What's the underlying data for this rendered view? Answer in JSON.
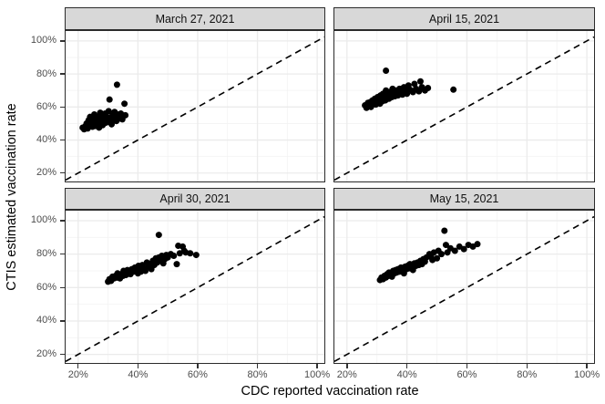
{
  "chart_data": {
    "type": "scatter",
    "title": "",
    "xlabel": "CDC reported vaccination rate",
    "ylabel": "CTIS estimated vaccination rate",
    "x_domain": [
      15.8,
      102.4
    ],
    "y_domain": [
      14.9,
      106.0
    ],
    "axis_ticks": {
      "values": [
        20,
        40,
        60,
        80,
        100
      ],
      "labels": [
        "20%",
        "40%",
        "60%",
        "80%",
        "100%"
      ],
      "minor_values": [
        30,
        50,
        70,
        90
      ]
    },
    "grid": "on",
    "legend": "none",
    "reference_line": {
      "type": "identity",
      "style": "dashed",
      "from": 15.8,
      "to": 102.4
    },
    "point_radius_px": 3.5,
    "facets": [
      {
        "title": "March 27, 2021",
        "points": [
          [
            21.5,
            47.5
          ],
          [
            22,
            46.5
          ],
          [
            22.3,
            48.2
          ],
          [
            22.8,
            50
          ],
          [
            23.2,
            47
          ],
          [
            23.5,
            52
          ],
          [
            23.8,
            49
          ],
          [
            24,
            54
          ],
          [
            24.3,
            51
          ],
          [
            24.8,
            48
          ],
          [
            25,
            53
          ],
          [
            25.2,
            50.2
          ],
          [
            25.4,
            55.5
          ],
          [
            25.8,
            48.5
          ],
          [
            26,
            52
          ],
          [
            26.4,
            54
          ],
          [
            26.8,
            50
          ],
          [
            27,
            47.5
          ],
          [
            27.2,
            53
          ],
          [
            27.4,
            56.5
          ],
          [
            27.8,
            51
          ],
          [
            28,
            55
          ],
          [
            28.2,
            49
          ],
          [
            28.5,
            53.5
          ],
          [
            28.8,
            52
          ],
          [
            29,
            56
          ],
          [
            29.3,
            50.5
          ],
          [
            29.6,
            54
          ],
          [
            30,
            52.5
          ],
          [
            30.2,
            57.5
          ],
          [
            30.4,
            51
          ],
          [
            30.5,
            64.5
          ],
          [
            31,
            53
          ],
          [
            31.2,
            49.5
          ],
          [
            31.5,
            55
          ],
          [
            31.9,
            52
          ],
          [
            32.2,
            57
          ],
          [
            32.5,
            54
          ],
          [
            32.8,
            51.5
          ],
          [
            33,
            73.5
          ],
          [
            33.4,
            55.5
          ],
          [
            33.8,
            53
          ],
          [
            34.3,
            56
          ],
          [
            34.8,
            52.5
          ],
          [
            35.5,
            62
          ],
          [
            35.8,
            55
          ]
        ]
      },
      {
        "title": "April 15, 2021",
        "points": [
          [
            26,
            61
          ],
          [
            26.5,
            59.5
          ],
          [
            27,
            62.5
          ],
          [
            27.5,
            61
          ],
          [
            27.8,
            63
          ],
          [
            28,
            60
          ],
          [
            28.5,
            64
          ],
          [
            29,
            62
          ],
          [
            29.3,
            65
          ],
          [
            29.6,
            61.5
          ],
          [
            30,
            63.5
          ],
          [
            30.2,
            66
          ],
          [
            30.5,
            64
          ],
          [
            31,
            62
          ],
          [
            31.2,
            67
          ],
          [
            31.5,
            65
          ],
          [
            31.8,
            63.5
          ],
          [
            32,
            68
          ],
          [
            32.4,
            66
          ],
          [
            32.8,
            64
          ],
          [
            33,
            70
          ],
          [
            33,
            82
          ],
          [
            33.5,
            67
          ],
          [
            34,
            65
          ],
          [
            34.2,
            69
          ],
          [
            34.6,
            67.5
          ],
          [
            35,
            66
          ],
          [
            35.2,
            71
          ],
          [
            35.6,
            68
          ],
          [
            36,
            66.5
          ],
          [
            36.2,
            70
          ],
          [
            36.6,
            68.5
          ],
          [
            37,
            67
          ],
          [
            37.5,
            71
          ],
          [
            38,
            69
          ],
          [
            38.5,
            67.5
          ],
          [
            39,
            72
          ],
          [
            39.5,
            70
          ],
          [
            40,
            68
          ],
          [
            40.5,
            73
          ],
          [
            41,
            70.5
          ],
          [
            42,
            69
          ],
          [
            42.5,
            74
          ],
          [
            43,
            71
          ],
          [
            44,
            69.5
          ],
          [
            44.5,
            75.5
          ],
          [
            45,
            72
          ],
          [
            46,
            70
          ],
          [
            47,
            71.5
          ],
          [
            55.5,
            70.5
          ]
        ]
      },
      {
        "title": "April 30, 2021",
        "points": [
          [
            30,
            63.5
          ],
          [
            30.5,
            65
          ],
          [
            31,
            64
          ],
          [
            31.5,
            66.5
          ],
          [
            32,
            65.5
          ],
          [
            32.5,
            67
          ],
          [
            33,
            66
          ],
          [
            33.2,
            68.5
          ],
          [
            33.6,
            67
          ],
          [
            34,
            65.5
          ],
          [
            34.5,
            68
          ],
          [
            35,
            67
          ],
          [
            35.2,
            70
          ],
          [
            35.6,
            68.5
          ],
          [
            36,
            67.5
          ],
          [
            36.5,
            70.5
          ],
          [
            37,
            69
          ],
          [
            37.5,
            68
          ],
          [
            38,
            71
          ],
          [
            38.5,
            69.5
          ],
          [
            39,
            72
          ],
          [
            39.5,
            70
          ],
          [
            40,
            68.5
          ],
          [
            40.2,
            73
          ],
          [
            40.6,
            71
          ],
          [
            41,
            69.5
          ],
          [
            41.5,
            73.5
          ],
          [
            42,
            71.5
          ],
          [
            42.5,
            70
          ],
          [
            43,
            75
          ],
          [
            43.5,
            72.5
          ],
          [
            44,
            74
          ],
          [
            44.5,
            71
          ],
          [
            45,
            76
          ],
          [
            45.5,
            73.5
          ],
          [
            46,
            77.5
          ],
          [
            46.5,
            75
          ],
          [
            47,
            78
          ],
          [
            47,
            91.5
          ],
          [
            47.5,
            76
          ],
          [
            48,
            79
          ],
          [
            48.5,
            74.5
          ],
          [
            49,
            77
          ],
          [
            49.5,
            79.5
          ],
          [
            50,
            78
          ],
          [
            51,
            80
          ],
          [
            52,
            79
          ],
          [
            53,
            74
          ],
          [
            53.5,
            85
          ],
          [
            54,
            80.5
          ],
          [
            55,
            84.5
          ],
          [
            55.5,
            82
          ],
          [
            56,
            81
          ],
          [
            57.5,
            80.5
          ],
          [
            59.5,
            79.5
          ]
        ]
      },
      {
        "title": "May 15, 2021",
        "points": [
          [
            31,
            64.5
          ],
          [
            31.5,
            66
          ],
          [
            32,
            65
          ],
          [
            32.5,
            67
          ],
          [
            33,
            66
          ],
          [
            33.4,
            68
          ],
          [
            33.8,
            67
          ],
          [
            34,
            69
          ],
          [
            34.5,
            68
          ],
          [
            35,
            66.5
          ],
          [
            35.4,
            70
          ],
          [
            35.8,
            68.5
          ],
          [
            36.2,
            70.5
          ],
          [
            36.6,
            69
          ],
          [
            37,
            71
          ],
          [
            37.5,
            69.5
          ],
          [
            38,
            72
          ],
          [
            38.5,
            70.5
          ],
          [
            39,
            68.5
          ],
          [
            39.4,
            72.5
          ],
          [
            39.8,
            71
          ],
          [
            40.2,
            73
          ],
          [
            40.6,
            71.5
          ],
          [
            41,
            74
          ],
          [
            41.5,
            72
          ],
          [
            42,
            70.5
          ],
          [
            42.5,
            74.5
          ],
          [
            43,
            73
          ],
          [
            43.5,
            75
          ],
          [
            44,
            73.5
          ],
          [
            44.5,
            76
          ],
          [
            45,
            74
          ],
          [
            45.5,
            77
          ],
          [
            46,
            75.5
          ],
          [
            46.5,
            78
          ],
          [
            47.5,
            80
          ],
          [
            48,
            78.5
          ],
          [
            48.5,
            76.5
          ],
          [
            49,
            81
          ],
          [
            50,
            77.5
          ],
          [
            50.5,
            82
          ],
          [
            51.5,
            80
          ],
          [
            52.5,
            94
          ],
          [
            53,
            85.5
          ],
          [
            53.5,
            81
          ],
          [
            54.5,
            83.5
          ],
          [
            56,
            82
          ],
          [
            57.5,
            84.5
          ],
          [
            59,
            83
          ],
          [
            60.5,
            85.5
          ],
          [
            62,
            84.5
          ],
          [
            63.5,
            86
          ]
        ]
      }
    ],
    "colors": {
      "background": "#ffffff",
      "strip_bg": "#d8d8d8",
      "strip_border": "#2b2b2b",
      "panel_border": "#2b2b2b",
      "grid_major": "#ebebeb",
      "grid_minor": "#f3f3f3",
      "point": "#000000",
      "reference_line": "#000000",
      "tick_label": "#4d4d4d",
      "tick_mark": "#333333",
      "axis_title": "#000000"
    }
  }
}
